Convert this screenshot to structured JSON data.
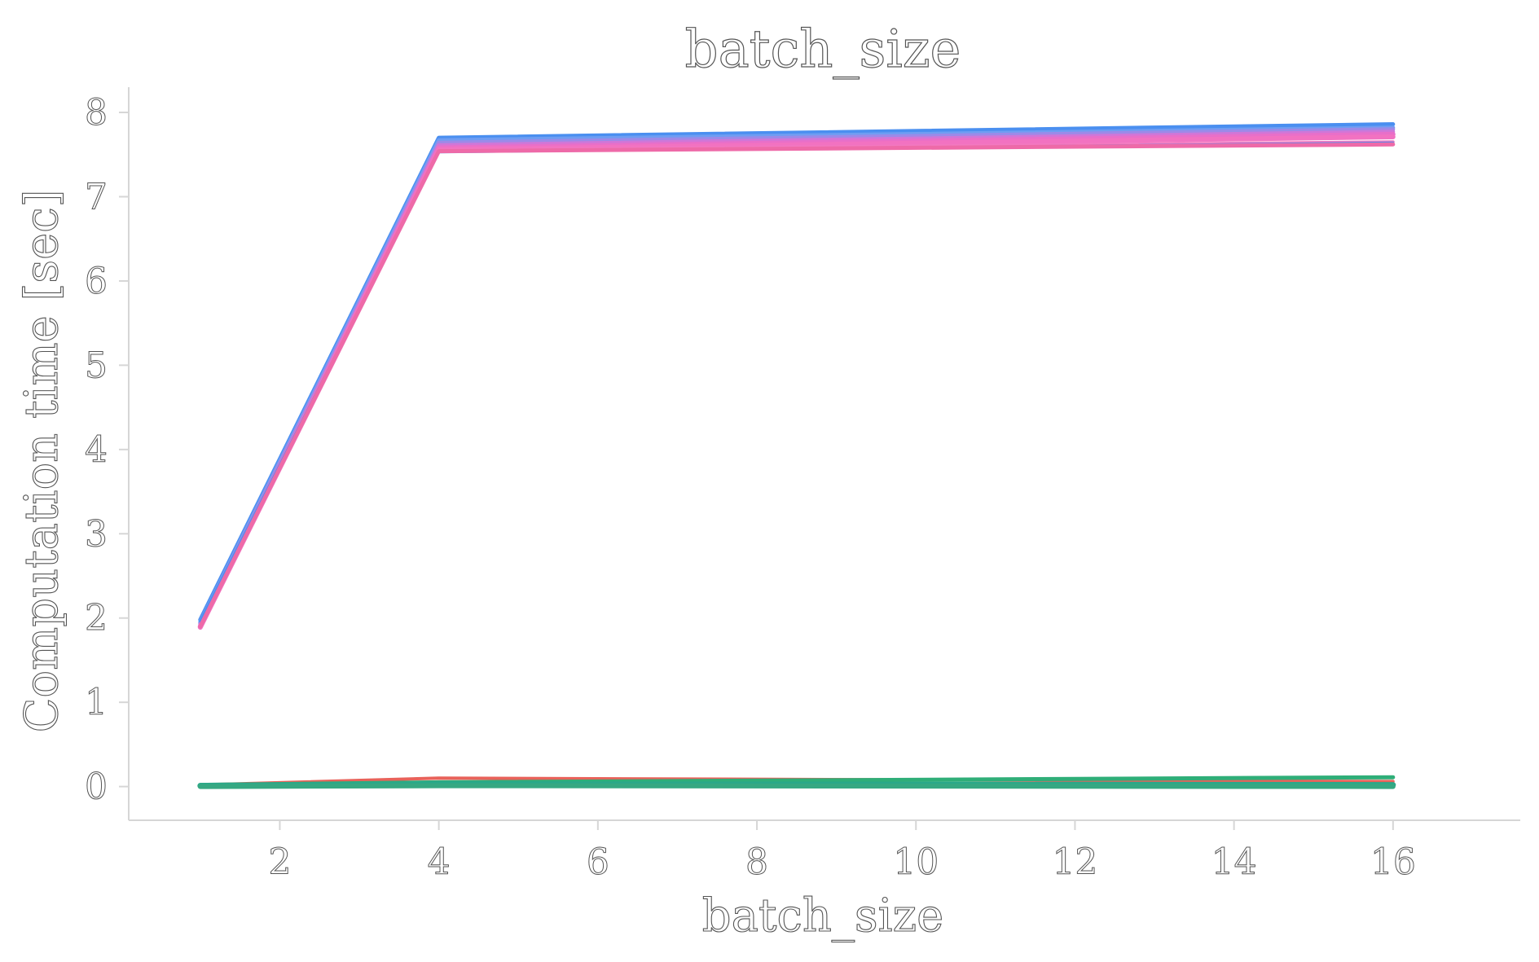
{
  "chart_data": {
    "type": "line",
    "title": "batch_size",
    "xlabel": "batch_size",
    "ylabel": "Computation time [sec]",
    "xlim": [
      0.1,
      17.6
    ],
    "ylim": [
      -0.4,
      8.3
    ],
    "xticks": [
      2,
      4,
      6,
      8,
      10,
      12,
      14,
      16
    ],
    "yticks": [
      0,
      1,
      2,
      3,
      4,
      5,
      6,
      7,
      8
    ],
    "grid": false,
    "legend": "none",
    "series": [
      {
        "color": "#4a8ff0",
        "width": 5,
        "x": [
          1,
          4,
          16
        ],
        "y": [
          1.98,
          7.7,
          7.86
        ]
      },
      {
        "color": "#6f9df2",
        "width": 5,
        "x": [
          1,
          4,
          16
        ],
        "y": [
          1.95,
          7.67,
          7.82
        ]
      },
      {
        "color": "#9c8ae8",
        "width": 5,
        "x": [
          1,
          4,
          16
        ],
        "y": [
          1.93,
          7.64,
          7.8
        ]
      },
      {
        "color": "#cf77d8",
        "width": 5,
        "x": [
          1,
          4,
          16
        ],
        "y": [
          1.91,
          7.61,
          7.77
        ]
      },
      {
        "color": "#e86fc9",
        "width": 6,
        "x": [
          1,
          4,
          16
        ],
        "y": [
          1.9,
          7.58,
          7.74
        ]
      },
      {
        "color": "#f272c1",
        "width": 6,
        "x": [
          1,
          4,
          16
        ],
        "y": [
          1.89,
          7.56,
          7.71
        ]
      },
      {
        "color": "#f279c0",
        "width": 4,
        "x": [
          1,
          4,
          16
        ],
        "y": [
          1.9,
          7.55,
          7.65
        ]
      },
      {
        "color": "#4a8ff0",
        "width": 3,
        "x": [
          1,
          4,
          16
        ],
        "y": [
          1.96,
          7.53,
          7.64
        ]
      },
      {
        "color": "#ee6aa8",
        "width": 5,
        "x": [
          1,
          4,
          16
        ],
        "y": [
          1.9,
          7.54,
          7.62
        ]
      },
      {
        "color": "#e8625a",
        "width": 4,
        "x": [
          1,
          4,
          16
        ],
        "y": [
          0.02,
          0.1,
          0.06
        ]
      },
      {
        "color": "#d8922a",
        "width": 4,
        "x": [
          1,
          4,
          16
        ],
        "y": [
          0.01,
          0.04,
          0.03
        ]
      },
      {
        "color": "#8aa82a",
        "width": 4,
        "x": [
          1,
          4,
          16
        ],
        "y": [
          0.01,
          0.03,
          0.02
        ]
      },
      {
        "color": "#2fae78",
        "width": 5,
        "x": [
          1,
          4,
          16
        ],
        "y": [
          0.02,
          0.05,
          0.11
        ]
      },
      {
        "color": "#2aa889",
        "width": 7,
        "x": [
          1,
          4,
          16
        ],
        "y": [
          0.01,
          0.03,
          0.02
        ]
      },
      {
        "color": "#36a882",
        "width": 6,
        "x": [
          1,
          4,
          16
        ],
        "y": [
          0.0,
          0.01,
          0.0
        ]
      }
    ]
  }
}
